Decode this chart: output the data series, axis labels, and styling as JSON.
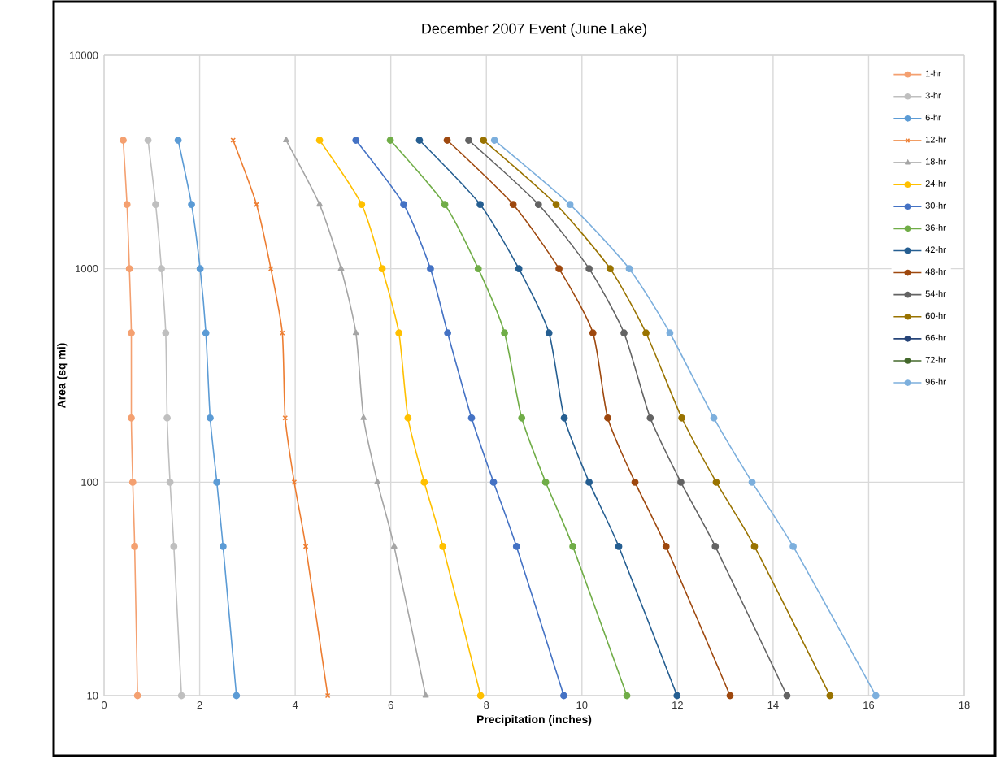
{
  "chart_data": {
    "type": "line",
    "title": "December 2007 Event (June Lake)",
    "xlabel": "Precipitation (inches)",
    "ylabel": "Area (sq mi)",
    "xlim": [
      0,
      18
    ],
    "xticks": [
      0,
      2,
      4,
      6,
      8,
      10,
      12,
      14,
      16,
      18
    ],
    "ylim": [
      10,
      10000
    ],
    "yticks": [
      10,
      100,
      1000,
      10000
    ],
    "log": "y",
    "grid": true,
    "legend": "top right",
    "marker": "circle",
    "series": [
      {
        "name": "1-hr",
        "color": "#f4a070",
        "x": [
          0.4,
          0.48,
          0.53,
          0.57,
          0.57,
          0.6,
          0.64,
          0.7
        ],
        "values": [
          4000,
          2000,
          1000,
          500,
          200,
          100,
          50,
          10
        ]
      },
      {
        "name": "3-hr",
        "color": "#bfbfbf",
        "x": [
          0.92,
          1.08,
          1.2,
          1.29,
          1.32,
          1.38,
          1.46,
          1.62
        ],
        "values": [
          4000,
          2000,
          1000,
          500,
          200,
          100,
          50,
          10
        ]
      },
      {
        "name": "6-hr",
        "color": "#5b9bd5",
        "x": [
          1.55,
          1.83,
          2.01,
          2.13,
          2.22,
          2.36,
          2.49,
          2.77
        ],
        "values": [
          4000,
          2000,
          1000,
          500,
          200,
          100,
          50,
          10
        ]
      },
      {
        "name": "12-hr",
        "color": "#ed7d31",
        "marker": "cross",
        "x": [
          2.7,
          3.19,
          3.49,
          3.73,
          3.79,
          3.98,
          4.22,
          4.68
        ],
        "values": [
          4000,
          2000,
          1000,
          500,
          200,
          100,
          50,
          10
        ]
      },
      {
        "name": "18-hr",
        "color": "#a5a5a5",
        "marker": "triangle",
        "x": [
          3.81,
          4.51,
          4.96,
          5.27,
          5.43,
          5.72,
          6.07,
          6.73
        ],
        "values": [
          4000,
          2000,
          1000,
          500,
          200,
          100,
          50,
          10
        ]
      },
      {
        "name": "24-hr",
        "color": "#ffc000",
        "x": [
          4.51,
          5.39,
          5.82,
          6.17,
          6.36,
          6.7,
          7.09,
          7.88
        ],
        "values": [
          4000,
          2000,
          1000,
          500,
          200,
          100,
          50,
          10
        ]
      },
      {
        "name": "30-hr",
        "color": "#4472c4",
        "x": [
          5.27,
          6.27,
          6.83,
          7.19,
          7.69,
          8.15,
          8.63,
          9.62
        ],
        "values": [
          4000,
          2000,
          1000,
          500,
          200,
          100,
          50,
          10
        ]
      },
      {
        "name": "36-hr",
        "color": "#70ad47",
        "x": [
          5.99,
          7.13,
          7.83,
          8.38,
          8.74,
          9.24,
          9.81,
          10.94
        ],
        "values": [
          4000,
          2000,
          1000,
          500,
          200,
          100,
          50,
          10
        ]
      },
      {
        "name": "42-hr",
        "color": "#255e91",
        "x": [
          6.6,
          7.87,
          8.68,
          9.31,
          9.63,
          10.15,
          10.77,
          11.99
        ],
        "values": [
          4000,
          2000,
          1000,
          500,
          200,
          100,
          50,
          10
        ]
      },
      {
        "name": "48-hr",
        "color": "#9e480e",
        "x": [
          7.18,
          8.56,
          9.52,
          10.23,
          10.54,
          11.11,
          11.76,
          13.1
        ],
        "values": [
          4000,
          2000,
          1000,
          500,
          200,
          100,
          50,
          10
        ]
      },
      {
        "name": "54-hr",
        "color": "#636363",
        "x": [
          7.63,
          9.09,
          10.15,
          10.88,
          11.43,
          12.07,
          12.79,
          14.29
        ],
        "values": [
          4000,
          2000,
          1000,
          500,
          200,
          100,
          50,
          10
        ]
      },
      {
        "name": "60-hr",
        "color": "#997300",
        "x": [
          7.94,
          9.46,
          10.59,
          11.34,
          12.09,
          12.81,
          13.61,
          15.19
        ],
        "values": [
          4000,
          2000,
          1000,
          500,
          200,
          100,
          50,
          10
        ]
      },
      {
        "name": "66-hr",
        "color": "#264478",
        "x": [
          null,
          null,
          null,
          null,
          null,
          null,
          null,
          null
        ],
        "values": [
          null,
          null,
          null,
          null,
          null,
          null,
          null,
          null
        ]
      },
      {
        "name": "72-hr",
        "color": "#43682b",
        "x": [
          null,
          null,
          null,
          null,
          null,
          null,
          null,
          null
        ],
        "values": [
          null,
          null,
          null,
          null,
          null,
          null,
          null,
          null
        ]
      },
      {
        "name": "96-hr",
        "color": "#7cafdd",
        "x": [
          8.17,
          9.75,
          10.99,
          11.84,
          12.76,
          13.56,
          14.42,
          16.15
        ],
        "values": [
          4000,
          2000,
          1000,
          500,
          200,
          100,
          50,
          10
        ]
      }
    ]
  }
}
